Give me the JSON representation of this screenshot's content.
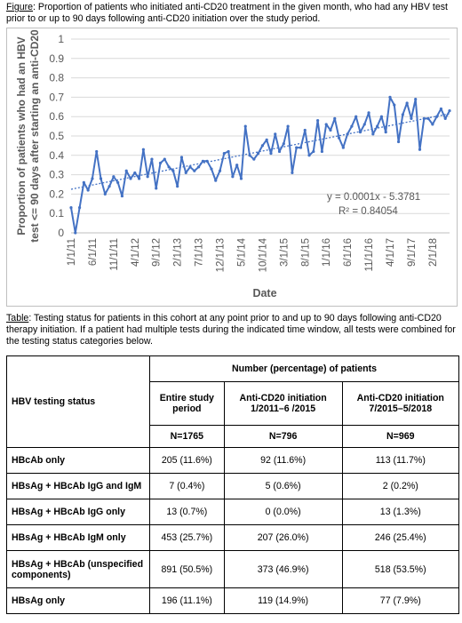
{
  "figure": {
    "caption_label": "Figure",
    "caption_text": ": Proportion of patients who initiated anti-CD20 treatment in the given month, who had any HBV test prior to or up to 90 days following anti-CD20 initiation over the study period."
  },
  "chart_data": {
    "type": "line",
    "title": "",
    "xlabel": "Date",
    "ylabel": "Proportion of patients who had an HBV test <= 90 days after starting an anti-CD20",
    "ylabel_lines": [
      "Proportion of patients who had an HBV",
      "test <= 90 days after starting an anti-CD20"
    ],
    "ylim": [
      0,
      1
    ],
    "y_ticks": [
      "0",
      "0.1",
      "0.2",
      "0.3",
      "0.4",
      "0.5",
      "0.6",
      "0.7",
      "0.8",
      "0.9",
      "1"
    ],
    "x_ticks": [
      {
        "label": "1/1/11",
        "index": 0
      },
      {
        "label": "6/1/11",
        "index": 5
      },
      {
        "label": "11/1/11",
        "index": 10
      },
      {
        "label": "4/1/12",
        "index": 15
      },
      {
        "label": "9/1/12",
        "index": 20
      },
      {
        "label": "2/1/13",
        "index": 25
      },
      {
        "label": "7/1/13",
        "index": 30
      },
      {
        "label": "12/1/13",
        "index": 35
      },
      {
        "label": "5/1/14",
        "index": 40
      },
      {
        "label": "10/1/14",
        "index": 45
      },
      {
        "label": "3/1/15",
        "index": 50
      },
      {
        "label": "8/1/15",
        "index": 55
      },
      {
        "label": "1/1/16",
        "index": 60
      },
      {
        "label": "6/1/16",
        "index": 65
      },
      {
        "label": "11/1/16",
        "index": 70
      },
      {
        "label": "4/1/17",
        "index": 75
      },
      {
        "label": "9/1/17",
        "index": 80
      },
      {
        "label": "2/1/18",
        "index": 85
      }
    ],
    "series": [
      {
        "values": [
          0.13,
          0.0,
          0.13,
          0.26,
          0.22,
          0.28,
          0.42,
          0.28,
          0.2,
          0.24,
          0.29,
          0.26,
          0.19,
          0.32,
          0.28,
          0.31,
          0.28,
          0.43,
          0.29,
          0.38,
          0.23,
          0.36,
          0.38,
          0.34,
          0.32,
          0.24,
          0.39,
          0.31,
          0.34,
          0.32,
          0.34,
          0.37,
          0.37,
          0.33,
          0.27,
          0.32,
          0.41,
          0.42,
          0.29,
          0.35,
          0.28,
          0.55,
          0.4,
          0.38,
          0.41,
          0.45,
          0.48,
          0.41,
          0.51,
          0.42,
          0.46,
          0.55,
          0.31,
          0.44,
          0.44,
          0.53,
          0.4,
          0.42,
          0.58,
          0.42,
          0.56,
          0.53,
          0.59,
          0.49,
          0.44,
          0.51,
          0.55,
          0.6,
          0.52,
          0.56,
          0.62,
          0.51,
          0.55,
          0.6,
          0.52,
          0.7,
          0.66,
          0.47,
          0.61,
          0.67,
          0.59,
          0.69,
          0.43,
          0.59,
          0.59,
          0.56,
          0.6,
          0.64,
          0.59,
          0.63
        ]
      }
    ],
    "trendline": {
      "equation": "y = 0.0001x - 5.3781",
      "r_squared": "R² = 0.84054",
      "start_value": 0.225,
      "end_value": 0.615
    },
    "grid": "horizontal",
    "legend": "none",
    "colors": {
      "series": "#4472c4",
      "trend": "#4472c4",
      "grid": "#d9d9d9",
      "text": "#595959"
    }
  },
  "table_caption": {
    "label": "Table",
    "text": ": Testing status for patients in this cohort at any point prior to and up to 90 days following anti-CD20 therapy initiation. If a patient had multiple tests during the indicated time window, all tests were combined for the testing status categories below."
  },
  "table": {
    "row_header": "HBV testing status",
    "group_header": "Number (percentage) of patients",
    "columns": [
      "Entire study period",
      "Anti-CD20 initiation 1/2011–6 /2015",
      "Anti-CD20 initiation 7/2015–5/2018"
    ],
    "ns": [
      "N=1765",
      "N=796",
      "N=969"
    ],
    "rows": [
      {
        "label": "HBcAb only",
        "values": [
          "205 (11.6%)",
          "92 (11.6%)",
          "113 (11.7%)"
        ]
      },
      {
        "label": "HBsAg + HBcAb IgG and IgM",
        "values": [
          "7 (0.4%)",
          "5 (0.6%)",
          "2 (0.2%)"
        ]
      },
      {
        "label": "HBsAg + HBcAb IgG only",
        "values": [
          "13 (0.7%)",
          "0 (0.0%)",
          "13 (1.3%)"
        ]
      },
      {
        "label": "HBsAg + HBcAb IgM only",
        "values": [
          "453 (25.7%)",
          "207 (26.0%)",
          "246 (25.4%)"
        ]
      },
      {
        "label": "HBsAg + HBcAb (unspecified components)",
        "values": [
          "891 (50.5%)",
          "373 (46.9%)",
          "518 (53.5%)"
        ]
      },
      {
        "label": "HBsAg only",
        "values": [
          "196 (11.1%)",
          "119 (14.9%)",
          "77 (7.9%)"
        ]
      }
    ]
  }
}
